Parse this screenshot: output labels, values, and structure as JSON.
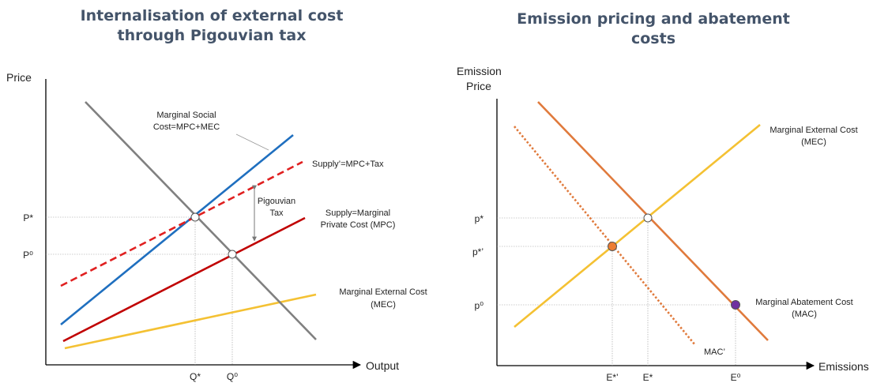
{
  "colors": {
    "gray": "#808080",
    "blue": "#1f6fbf",
    "red": "#c00000",
    "red_dash": "#e02020",
    "yellow": "#f4c133",
    "orange": "#e07a3c",
    "dot_orange": "#ed7d31",
    "dot_purple": "#7030a0",
    "title": "#44546a"
  },
  "left": {
    "title_line1": "Internalisation of external cost",
    "title_line2": "through Pigouvian tax",
    "y_axis_label": "Price",
    "x_axis_label": "Output",
    "ticks": {
      "p_star": "P*",
      "p_zero": "P⁰",
      "q_star": "Q*",
      "q_zero": "Q⁰"
    },
    "labels": {
      "msc_line1": "Marginal Social",
      "msc_line2": "Cost=MPC+MEC",
      "supply_tax": "Supply’=MPC+Tax",
      "tax_line1": "Pigouvian",
      "tax_line2": "Tax",
      "supply_line1": "Supply=Marginal",
      "supply_line2": "Private Cost (MPC)",
      "mec_line1": "Marginal External Cost",
      "mec_line2": "(MEC)"
    }
  },
  "right": {
    "title_line1": "Emission pricing and abatement",
    "title_line2": "costs",
    "y_axis_label_line1": "Emission",
    "y_axis_label_line2": "Price",
    "x_axis_label": "Emissions",
    "ticks": {
      "p_star": "p*",
      "p_star_prime": "p*’",
      "p_zero": "p⁰",
      "e_star_prime": "E*’",
      "e_star": "E*",
      "e_zero": "E⁰"
    },
    "labels": {
      "mec_line1": "Marginal External Cost",
      "mec_line2": "(MEC)",
      "mac_line1": "Marginal Abatement Cost",
      "mac_line2": "(MAC)",
      "mac_prime": "MAC’"
    }
  }
}
